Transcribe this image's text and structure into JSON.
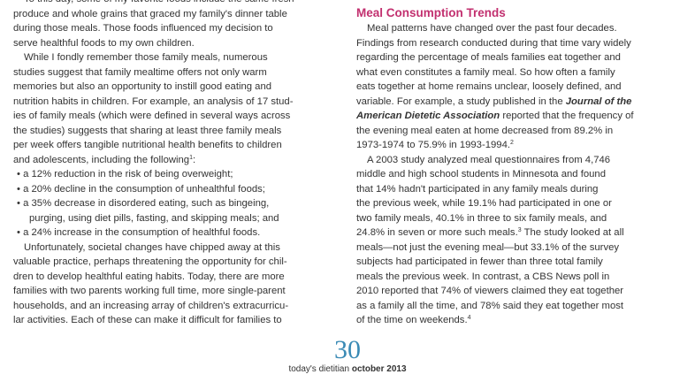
{
  "left_column": {
    "lines": [
      "To this day, some of my favorite foods include the same fresh",
      "produce and whole grains that graced my family's dinner table",
      "during those meals. Those foods influenced my decision to",
      "serve healthful foods to my own children.",
      "While I fondly remember those family meals, numerous",
      "studies suggest that family mealtime offers not only warm",
      "memories but also an opportunity to instill good eating and",
      "nutrition habits in children. For example, an analysis of 17 stud-",
      "ies of family meals (which were defined in several ways across",
      "the studies) suggests that sharing at least three family meals",
      "per week offers tangible nutritional health benefits to children",
      [
        "and adolescents, including the following",
        {
          "text": "1",
          "style": "sup"
        },
        ":"
      ],
      "• a 12% reduction in the risk of being overweight;",
      "• a 20% decline in the consumption of unhealthful foods;",
      "• a 35% decrease in disordered eating, such as bingeing,",
      "purging, using diet pills, fasting, and skipping meals; and",
      "• a 24% increase in the consumption of healthful foods.",
      "Unfortunately, societal changes have chipped away at this",
      "valuable practice, perhaps threatening the opportunity for chil-",
      "dren to develop healthful eating habits. Today, there are more",
      "families with two parents working full time, more single-parent",
      "households, and an increasing array of children's extracurricu-",
      "lar activities. Each of these can make it difficult for families to"
    ]
  },
  "right_column": {
    "heading": "Meal Consumption Trends",
    "lines": [
      "Meal patterns have changed over the past four decades.",
      "Findings from research conducted during that time vary widely",
      "regarding the percentage of meals families eat together and",
      "what even constitutes a family meal. So how often a family",
      "eats together at home remains unclear, loosely defined, and",
      [
        "variable. For example, a study published in the ",
        {
          "text": "Journal of the",
          "style": "italic"
        }
      ],
      [
        {
          "text": "American Dietetic Association",
          "style": "italic"
        },
        " reported that the frequency of"
      ],
      "the evening meal eaten at home decreased from 89.2% in",
      [
        "1973-1974 to 75.9% in 1993-1994.",
        {
          "text": "2",
          "style": "sup"
        }
      ],
      "A 2003 study analyzed meal questionnaires from 4,746",
      "middle and high school students in Minnesota and found",
      "that 14% hadn't participated in any family meals during",
      "the previous week, while 19.1% had participated in one or",
      "two family meals, 40.1% in three to six family meals, and",
      [
        "24.8% in seven or more such meals.",
        {
          "text": "3",
          "style": "sup"
        },
        " The study looked at all"
      ],
      "meals—not just the evening meal—but 33.1% of the survey",
      "subjects had participated in fewer than three total family",
      "meals the previous week. In contrast, a CBS News poll in",
      "2010 reported that 74% of viewers claimed they eat together",
      "as a family all the time, and 78% said they eat together most",
      [
        "of the time on weekends.",
        {
          "text": "4",
          "style": "sup"
        }
      ]
    ]
  },
  "footer": {
    "page_number": "30",
    "magazine": "today's dietitian",
    "issue": "october 2013"
  }
}
